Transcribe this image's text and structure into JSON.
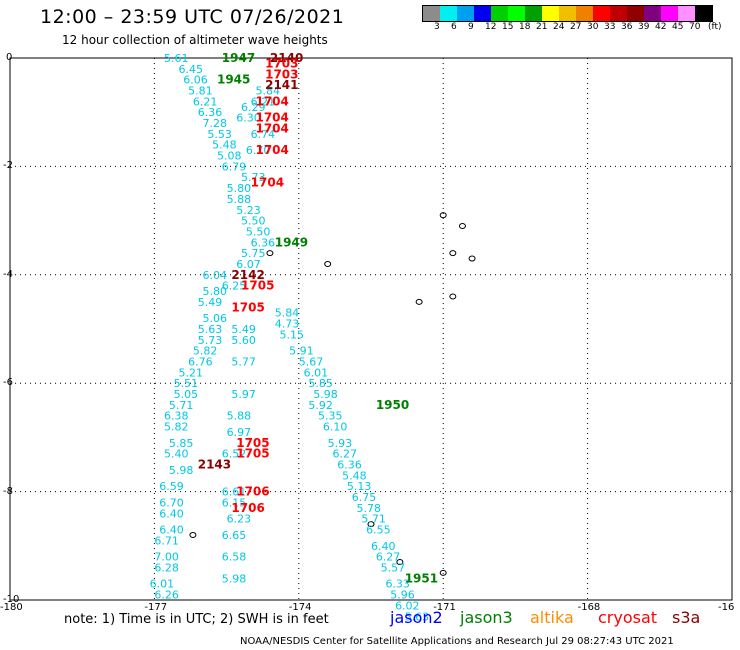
{
  "header": {
    "title": "12:00 – 23:59 UTC 07/26/2021",
    "subtitle": "12 hour collection of altimeter wave heights"
  },
  "legend": {
    "colors": [
      "#8c8c8c",
      "#00f0f0",
      "#00a0f0",
      "#0000f0",
      "#00d000",
      "#00ff00",
      "#00a000",
      "#ffff00",
      "#f0c000",
      "#f08000",
      "#ff0000",
      "#c00000",
      "#900000",
      "#800080",
      "#ff00ff",
      "#ff90ff",
      "#000000"
    ],
    "values": [
      "3",
      "6",
      "9",
      "12",
      "15",
      "18",
      "21",
      "24",
      "27",
      "30",
      "33",
      "36",
      "39",
      "42",
      "45",
      "70"
    ],
    "unit": "(ft)"
  },
  "axes": {
    "x_ticks": [
      "-180",
      "-177",
      "-174",
      "-171",
      "-168",
      "-16"
    ],
    "y_ticks": [
      "0",
      "-2",
      "-4",
      "-6",
      "-8",
      "-10"
    ]
  },
  "footer": {
    "note": "note: 1) Time is in UTC; 2) SWH is in feet",
    "satellites": [
      {
        "name": "jason2",
        "color": "#0000ff"
      },
      {
        "name": "jason3",
        "color": "#008000"
      },
      {
        "name": "altika",
        "color": "#ff8c00"
      },
      {
        "name": "cryosat",
        "color": "#ff0000"
      },
      {
        "name": "s3a",
        "color": "#8b0000"
      }
    ],
    "credit": "NOAA/NESDIS Center for Satellite Applications and Research    Jul 29 08:27:43 UTC 2021"
  },
  "map_data": {
    "swh_labels": [
      {
        "lon": -176.8,
        "lat": -0.0,
        "v": "5.61"
      },
      {
        "lon": -176.5,
        "lat": -0.2,
        "v": "6.45"
      },
      {
        "lon": -176.4,
        "lat": -0.4,
        "v": "6.06"
      },
      {
        "lon": -176.3,
        "lat": -0.6,
        "v": "5.81"
      },
      {
        "lon": -176.2,
        "lat": -0.8,
        "v": "6.21"
      },
      {
        "lon": -176.1,
        "lat": -1.0,
        "v": "6.36"
      },
      {
        "lon": -176.0,
        "lat": -1.2,
        "v": "7.28"
      },
      {
        "lon": -175.9,
        "lat": -1.4,
        "v": "5.53"
      },
      {
        "lon": -175.8,
        "lat": -1.6,
        "v": "5.48"
      },
      {
        "lon": -175.7,
        "lat": -1.8,
        "v": "5.08"
      },
      {
        "lon": -175.6,
        "lat": -2.0,
        "v": "6.79"
      },
      {
        "lon": -175.5,
        "lat": -2.4,
        "v": "5.80"
      },
      {
        "lon": -175.5,
        "lat": -2.6,
        "v": "5.88"
      },
      {
        "lon": -175.3,
        "lat": -2.8,
        "v": "5.23"
      },
      {
        "lon": -175.2,
        "lat": -3.0,
        "v": "5.50"
      },
      {
        "lon": -175.1,
        "lat": -3.2,
        "v": "5.50"
      },
      {
        "lon": -175.0,
        "lat": -3.4,
        "v": "6.36"
      },
      {
        "lon": -175.2,
        "lat": -3.6,
        "v": "5.75"
      },
      {
        "lon": -175.3,
        "lat": -3.8,
        "v": "6.07"
      },
      {
        "lon": -176.0,
        "lat": -4.0,
        "v": "6.04"
      },
      {
        "lon": -175.6,
        "lat": -4.2,
        "v": "6.25"
      },
      {
        "lon": -176.0,
        "lat": -4.3,
        "v": "5.80"
      },
      {
        "lon": -176.1,
        "lat": -4.5,
        "v": "5.49"
      },
      {
        "lon": -176.0,
        "lat": -4.8,
        "v": "5.06"
      },
      {
        "lon": -176.1,
        "lat": -5.0,
        "v": "5.63"
      },
      {
        "lon": -176.1,
        "lat": -5.2,
        "v": "5.73"
      },
      {
        "lon": -176.2,
        "lat": -5.4,
        "v": "5.82"
      },
      {
        "lon": -176.3,
        "lat": -5.6,
        "v": "6.76"
      },
      {
        "lon": -176.5,
        "lat": -5.8,
        "v": "5.21"
      },
      {
        "lon": -176.6,
        "lat": -6.0,
        "v": "5.51"
      },
      {
        "lon": -176.6,
        "lat": -6.2,
        "v": "5.05"
      },
      {
        "lon": -176.7,
        "lat": -6.4,
        "v": "5.71"
      },
      {
        "lon": -176.8,
        "lat": -6.6,
        "v": "6.38"
      },
      {
        "lon": -176.8,
        "lat": -6.8,
        "v": "5.82"
      },
      {
        "lon": -176.7,
        "lat": -7.1,
        "v": "5.85"
      },
      {
        "lon": -176.8,
        "lat": -7.3,
        "v": "5.40"
      },
      {
        "lon": -176.7,
        "lat": -7.6,
        "v": "5.98"
      },
      {
        "lon": -176.9,
        "lat": -7.9,
        "v": "6.59"
      },
      {
        "lon": -176.9,
        "lat": -8.2,
        "v": "6.70"
      },
      {
        "lon": -176.9,
        "lat": -8.4,
        "v": "6.40"
      },
      {
        "lon": -176.9,
        "lat": -8.7,
        "v": "6.40"
      },
      {
        "lon": -177.0,
        "lat": -8.9,
        "v": "6.71"
      },
      {
        "lon": -177.0,
        "lat": -9.2,
        "v": "7.00"
      },
      {
        "lon": -177.0,
        "lat": -9.4,
        "v": "6.28"
      },
      {
        "lon": -177.1,
        "lat": -9.7,
        "v": "6.01"
      },
      {
        "lon": -177.0,
        "lat": -9.9,
        "v": "6.26"
      },
      {
        "lon": -175.0,
        "lat": -0.8,
        "v": "6.21"
      },
      {
        "lon": -174.9,
        "lat": -0.6,
        "v": "5.84"
      },
      {
        "lon": -175.2,
        "lat": -0.9,
        "v": "6.29"
      },
      {
        "lon": -175.3,
        "lat": -1.1,
        "v": "6.30"
      },
      {
        "lon": -175.0,
        "lat": -1.4,
        "v": "6.74"
      },
      {
        "lon": -175.1,
        "lat": -1.7,
        "v": "6.70"
      },
      {
        "lon": -175.2,
        "lat": -2.2,
        "v": "5.73"
      },
      {
        "lon": -175.4,
        "lat": -5.0,
        "v": "5.49"
      },
      {
        "lon": -175.4,
        "lat": -5.2,
        "v": "5.60"
      },
      {
        "lon": -175.4,
        "lat": -5.6,
        "v": "5.77"
      },
      {
        "lon": -175.4,
        "lat": -6.2,
        "v": "5.97"
      },
      {
        "lon": -175.5,
        "lat": -6.6,
        "v": "5.88"
      },
      {
        "lon": -175.5,
        "lat": -6.9,
        "v": "6.97"
      },
      {
        "lon": -175.6,
        "lat": -7.3,
        "v": "6.52"
      },
      {
        "lon": -175.6,
        "lat": -8.0,
        "v": "6.61"
      },
      {
        "lon": -175.6,
        "lat": -8.2,
        "v": "6.15"
      },
      {
        "lon": -175.5,
        "lat": -8.5,
        "v": "6.23"
      },
      {
        "lon": -175.6,
        "lat": -8.8,
        "v": "6.65"
      },
      {
        "lon": -175.6,
        "lat": -9.2,
        "v": "6.58"
      },
      {
        "lon": -175.6,
        "lat": -9.6,
        "v": "5.98"
      },
      {
        "lon": -174.5,
        "lat": -4.7,
        "v": "5.84"
      },
      {
        "lon": -174.5,
        "lat": -4.9,
        "v": "4.73"
      },
      {
        "lon": -174.4,
        "lat": -5.1,
        "v": "5.15"
      },
      {
        "lon": -174.2,
        "lat": -5.4,
        "v": "5.91"
      },
      {
        "lon": -174.0,
        "lat": -5.6,
        "v": "5.67"
      },
      {
        "lon": -173.9,
        "lat": -5.8,
        "v": "6.01"
      },
      {
        "lon": -173.8,
        "lat": -6.0,
        "v": "5.85"
      },
      {
        "lon": -173.7,
        "lat": -6.2,
        "v": "5.98"
      },
      {
        "lon": -173.8,
        "lat": -6.4,
        "v": "5.92"
      },
      {
        "lon": -173.6,
        "lat": -6.6,
        "v": "5.35"
      },
      {
        "lon": -173.5,
        "lat": -6.8,
        "v": "6.10"
      },
      {
        "lon": -173.4,
        "lat": -7.1,
        "v": "5.93"
      },
      {
        "lon": -173.3,
        "lat": -7.3,
        "v": "6.27"
      },
      {
        "lon": -173.2,
        "lat": -7.5,
        "v": "6.36"
      },
      {
        "lon": -173.1,
        "lat": -7.7,
        "v": "5.48"
      },
      {
        "lon": -173.0,
        "lat": -7.9,
        "v": "5.13"
      },
      {
        "lon": -172.9,
        "lat": -8.1,
        "v": "6.75"
      },
      {
        "lon": -172.8,
        "lat": -8.3,
        "v": "5.78"
      },
      {
        "lon": -172.7,
        "lat": -8.5,
        "v": "5.71"
      },
      {
        "lon": -172.6,
        "lat": -8.7,
        "v": "6.55"
      },
      {
        "lon": -172.5,
        "lat": -9.0,
        "v": "6.40"
      },
      {
        "lon": -172.4,
        "lat": -9.2,
        "v": "6.27"
      },
      {
        "lon": -172.3,
        "lat": -9.4,
        "v": "5.57"
      },
      {
        "lon": -172.2,
        "lat": -9.7,
        "v": "6.33"
      },
      {
        "lon": -172.1,
        "lat": -9.9,
        "v": "5.96"
      },
      {
        "lon": -172.0,
        "lat": -10.1,
        "v": "6.02"
      },
      {
        "lon": -171.8,
        "lat": -10.3,
        "v": "5.63"
      }
    ],
    "time_labels": [
      {
        "lon": -175.6,
        "lat": 0.0,
        "v": "1947",
        "sat": "jason3"
      },
      {
        "lon": -174.6,
        "lat": 0.0,
        "v": "2140",
        "sat": "s3a"
      },
      {
        "lon": -174.7,
        "lat": -0.1,
        "v": "1703",
        "sat": "cryosat"
      },
      {
        "lon": -174.7,
        "lat": -0.3,
        "v": "1703",
        "sat": "cryosat"
      },
      {
        "lon": -175.7,
        "lat": -0.4,
        "v": "1945",
        "sat": "jason3"
      },
      {
        "lon": -174.7,
        "lat": -0.5,
        "v": "2141",
        "sat": "s3a"
      },
      {
        "lon": -174.9,
        "lat": -0.8,
        "v": "1704",
        "sat": "cryosat"
      },
      {
        "lon": -174.9,
        "lat": -1.1,
        "v": "1704",
        "sat": "cryosat"
      },
      {
        "lon": -174.9,
        "lat": -1.3,
        "v": "1704",
        "sat": "cryosat"
      },
      {
        "lon": -174.9,
        "lat": -1.7,
        "v": "1704",
        "sat": "cryosat"
      },
      {
        "lon": -175.0,
        "lat": -2.3,
        "v": "1704",
        "sat": "cryosat"
      },
      {
        "lon": -174.5,
        "lat": -3.4,
        "v": "1949",
        "sat": "jason3"
      },
      {
        "lon": -175.4,
        "lat": -4.0,
        "v": "2142",
        "sat": "s3a"
      },
      {
        "lon": -175.2,
        "lat": -4.2,
        "v": "1705",
        "sat": "cryosat"
      },
      {
        "lon": -175.4,
        "lat": -4.6,
        "v": "1705",
        "sat": "cryosat"
      },
      {
        "lon": -172.4,
        "lat": -6.4,
        "v": "1950",
        "sat": "jason3"
      },
      {
        "lon": -175.3,
        "lat": -7.1,
        "v": "1705",
        "sat": "cryosat"
      },
      {
        "lon": -175.3,
        "lat": -7.3,
        "v": "1705",
        "sat": "cryosat"
      },
      {
        "lon": -176.1,
        "lat": -7.5,
        "v": "2143",
        "sat": "s3a"
      },
      {
        "lon": -175.3,
        "lat": -8.0,
        "v": "1706",
        "sat": "cryosat"
      },
      {
        "lon": -175.4,
        "lat": -8.3,
        "v": "1706",
        "sat": "cryosat"
      },
      {
        "lon": -171.8,
        "lat": -9.6,
        "v": "1951",
        "sat": "jason3"
      }
    ],
    "islands": [
      {
        "lon": -171.0,
        "lat": -2.9
      },
      {
        "lon": -170.6,
        "lat": -3.1
      },
      {
        "lon": -170.8,
        "lat": -3.6
      },
      {
        "lon": -170.4,
        "lat": -3.7
      },
      {
        "lon": -171.5,
        "lat": -4.5
      },
      {
        "lon": -170.8,
        "lat": -4.4
      },
      {
        "lon": -173.4,
        "lat": -3.8
      },
      {
        "lon": -174.6,
        "lat": -3.6
      },
      {
        "lon": -172.5,
        "lat": -8.6
      },
      {
        "lon": -171.9,
        "lat": -9.3
      },
      {
        "lon": -171.0,
        "lat": -9.5
      },
      {
        "lon": -176.2,
        "lat": -8.8
      }
    ]
  }
}
